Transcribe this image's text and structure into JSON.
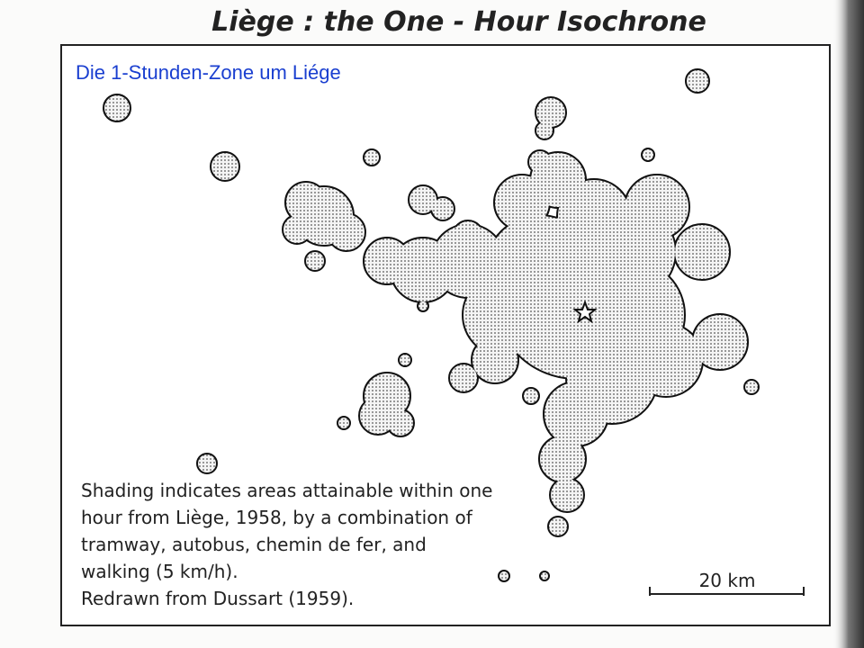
{
  "title": "Liège : the One - Hour Isochrone",
  "overlay_title": "Die 1-Stunden-Zone um Liége",
  "caption": [
    "Shading indicates areas attainable within one",
    "hour from Liège, 1958, by a combination of",
    "tramway, autobus, chemin de fer, and",
    "walking (5 km/h).",
    "Redrawn from Dussart (1959)."
  ],
  "scale_bar": "20 km"
}
